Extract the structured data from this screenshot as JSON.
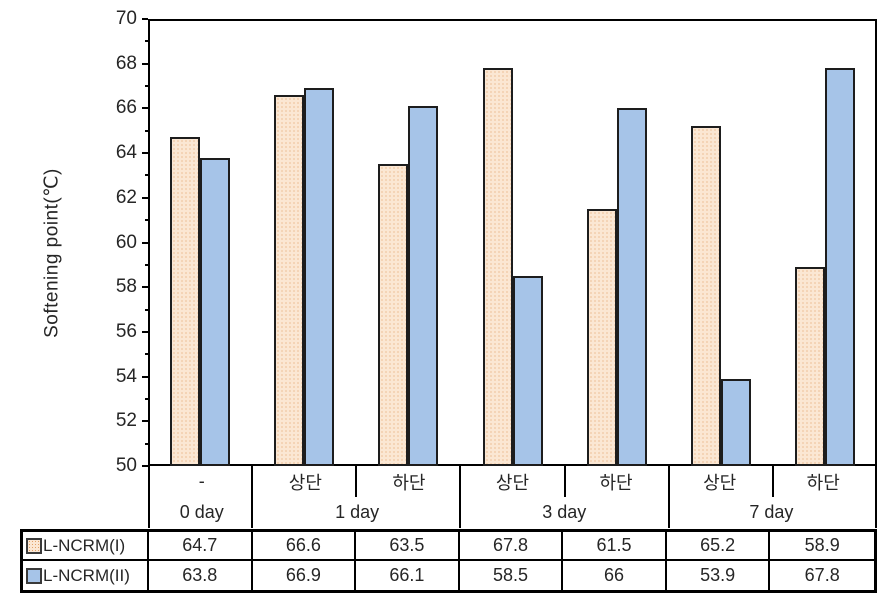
{
  "chart_data": {
    "type": "bar",
    "title": "",
    "y_axis_title": "Softening point(℃)",
    "ylim": [
      50,
      70
    ],
    "y_major_step": 2,
    "y_minor_step": 1,
    "y_ticks": [
      "70",
      "68",
      "66",
      "64",
      "62",
      "60",
      "58",
      "56",
      "54",
      "52",
      "50"
    ],
    "grid": false,
    "legend_position": "table-left",
    "categories_row1": [
      "-",
      "상단",
      "하단",
      "상단",
      "하단",
      "상단",
      "하단"
    ],
    "category_groups": [
      {
        "label": "0 day",
        "span": 1
      },
      {
        "label": "1 day",
        "span": 2
      },
      {
        "label": "3 day",
        "span": 2
      },
      {
        "label": "7 day",
        "span": 2
      }
    ],
    "series": [
      {
        "name": "L-NCRM(I)",
        "pattern": "dotted",
        "fill": "#FBE7D3",
        "dot": "#E3A269",
        "values": [
          64.7,
          66.6,
          63.5,
          67.8,
          61.5,
          65.2,
          58.9
        ],
        "display": [
          "64.7",
          "66.6",
          "63.5",
          "67.8",
          "61.5",
          "65.2",
          "58.9"
        ]
      },
      {
        "name": "L-NCRM(II)",
        "pattern": "solid",
        "fill": "#A6C4E8",
        "values": [
          63.8,
          66.9,
          66.1,
          58.5,
          66,
          53.9,
          67.8
        ],
        "display": [
          "63.8",
          "66.9",
          "66.1",
          "58.5",
          "66",
          "53.9",
          "67.8"
        ]
      }
    ],
    "colors": {
      "bar_border": "#1d1d1d",
      "axis": "#000000",
      "text": "#262626",
      "background": "#ffffff"
    }
  }
}
